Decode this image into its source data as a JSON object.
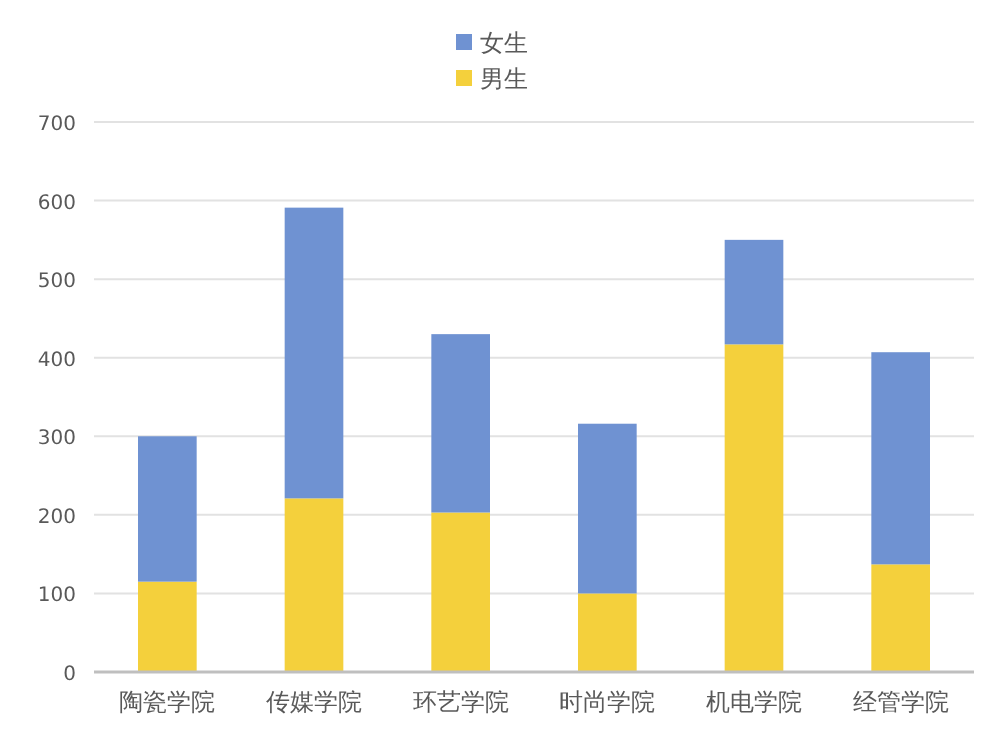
{
  "chart_data": {
    "type": "bar",
    "stacked": true,
    "categories": [
      "陶瓷学院",
      "传媒学院",
      "环艺学院",
      "时尚学院",
      "机电学院",
      "经管学院"
    ],
    "series": [
      {
        "name": "男生",
        "color": "#f4d03c",
        "values": [
          115,
          221,
          203,
          100,
          417,
          137
        ]
      },
      {
        "name": "女生",
        "color": "#6f92d2",
        "values": [
          185,
          370,
          227,
          216,
          133,
          270
        ]
      }
    ],
    "ylim": [
      0,
      700
    ],
    "yticks": [
      0,
      100,
      200,
      300,
      400,
      500,
      600,
      700
    ],
    "grid": "y",
    "legend": "top"
  }
}
